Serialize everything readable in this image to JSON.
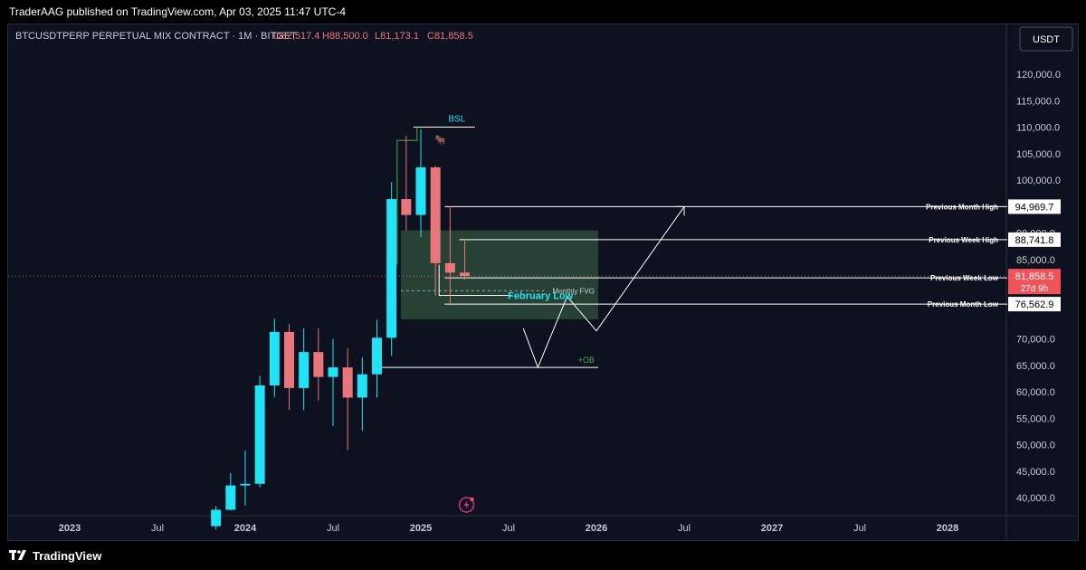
{
  "header": {
    "published": "TraderAAG published on TradingView.com, Apr 03, 2025 11:47 UTC-4"
  },
  "symbol_line": {
    "symbol": "BTCUSDTPERP PERPETUAL MIX CONTRACT · 1M · BITGET",
    "open": "O82,517.4",
    "high": "H88,500.0",
    "low": "L81,173.1",
    "close": "C81,858.5"
  },
  "currency_button": "USDT",
  "footer": {
    "brand": "TradingView"
  },
  "colors": {
    "up": "#22e3f5",
    "down": "#e8777b",
    "fvg": "#3d6b45",
    "background": "#0e1120",
    "text": "#c9ccd6"
  },
  "chart_data": {
    "type": "candlestick",
    "y_scale": {
      "min": 35000,
      "max": 125000
    },
    "y_ticks": [
      "120,000.0",
      "115,000.0",
      "110,000.0",
      "105,000.0",
      "100,000.0",
      "90,000.0",
      "85,000.0",
      "70,000.0",
      "65,000.0",
      "60,000.0",
      "55,000.0",
      "50,000.0",
      "45,000.0",
      "40,000.0"
    ],
    "x_ticks": [
      "2023",
      "Jul",
      "2024",
      "Jul",
      "2025",
      "Jul",
      "2026",
      "Jul",
      "2027",
      "Jul",
      "2028"
    ],
    "candles": [
      {
        "t": "2023-11",
        "o": 34600,
        "h": 38400,
        "l": 34000,
        "c": 37700
      },
      {
        "t": "2023-12",
        "o": 37700,
        "h": 44700,
        "l": 37600,
        "c": 42300
      },
      {
        "t": "2024-01",
        "o": 42300,
        "h": 48900,
        "l": 38500,
        "c": 42600
      },
      {
        "t": "2024-02",
        "o": 42600,
        "h": 63000,
        "l": 41900,
        "c": 61200
      },
      {
        "t": "2024-03",
        "o": 61200,
        "h": 73800,
        "l": 59000,
        "c": 71300
      },
      {
        "t": "2024-04",
        "o": 71300,
        "h": 72800,
        "l": 56600,
        "c": 60700
      },
      {
        "t": "2024-05",
        "o": 60700,
        "h": 72000,
        "l": 56500,
        "c": 67500
      },
      {
        "t": "2024-06",
        "o": 67500,
        "h": 72000,
        "l": 58400,
        "c": 62800
      },
      {
        "t": "2024-07",
        "o": 62800,
        "h": 70000,
        "l": 53500,
        "c": 64600
      },
      {
        "t": "2024-08",
        "o": 64600,
        "h": 68200,
        "l": 49000,
        "c": 58900
      },
      {
        "t": "2024-09",
        "o": 58900,
        "h": 66500,
        "l": 52600,
        "c": 63300
      },
      {
        "t": "2024-10",
        "o": 63300,
        "h": 73600,
        "l": 58900,
        "c": 70200
      },
      {
        "t": "2024-11",
        "o": 70200,
        "h": 99600,
        "l": 66800,
        "c": 96400
      },
      {
        "t": "2024-12",
        "o": 96400,
        "h": 108400,
        "l": 90500,
        "c": 93400
      },
      {
        "t": "2025-01",
        "o": 93400,
        "h": 109600,
        "l": 89200,
        "c": 102400
      },
      {
        "t": "2025-02",
        "o": 102400,
        "h": 102700,
        "l": 78200,
        "c": 84300
      },
      {
        "t": "2025-03",
        "o": 84300,
        "h": 95000,
        "l": 76600,
        "c": 82500
      },
      {
        "t": "2025-04",
        "o": 82517.4,
        "h": 88500,
        "l": 81173.1,
        "c": 81858.5
      }
    ],
    "levels": [
      {
        "name": "Previous Month High",
        "price": 94969.7,
        "label": "94,969.7"
      },
      {
        "name": "Previous Week High",
        "price": 88741.8,
        "label": "88,741.8"
      },
      {
        "name": "Previous Week Low",
        "price": 81508.0,
        "label": "81,508.0"
      },
      {
        "name": "Previous Month Low",
        "price": 76562.9,
        "label": "76,562.9"
      }
    ],
    "last_price": {
      "label": "81,858.5",
      "countdown": "27d 9h"
    },
    "annotations": {
      "bsl": "BSL",
      "monthly_fvg": "Monthly FVG",
      "february_low": "February Low",
      "ob": "+OB",
      "bull_icon": "🐂"
    },
    "fvg_zone": {
      "top": 90500,
      "bottom": 73700
    },
    "ob_level": 64600,
    "bsl_level": 110000,
    "february_low_level": 78200,
    "projection_path": [
      {
        "t": "2025-08",
        "p": 72000
      },
      {
        "t": "2025-09",
        "p": 64600
      },
      {
        "t": "2025-11",
        "p": 78000
      },
      {
        "t": "2026-01",
        "p": 71500
      },
      {
        "t": "2026-07",
        "p": 94969.7
      }
    ]
  }
}
